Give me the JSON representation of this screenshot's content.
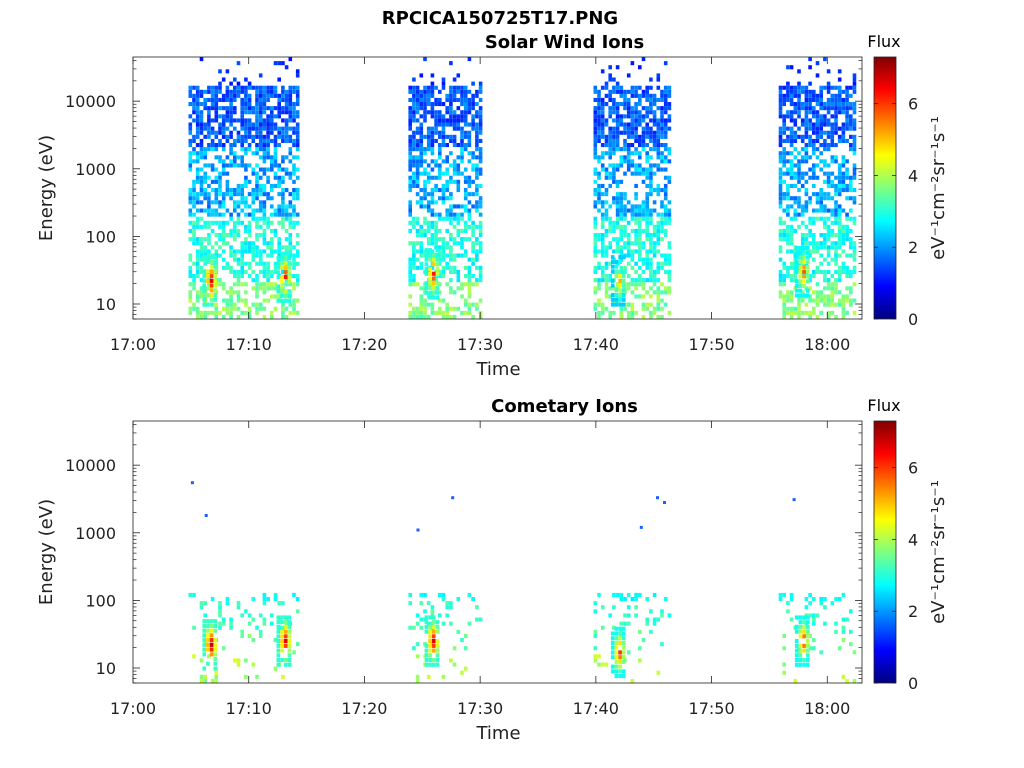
{
  "figure": {
    "title": "RPCICA150725T17.PNG"
  },
  "colorscale": [
    "#00007f",
    "#0000ff",
    "#007fff",
    "#00ffff",
    "#7fff7f",
    "#ffff00",
    "#ff7f00",
    "#ff0000",
    "#7f0000"
  ],
  "chart_data": [
    {
      "type": "heatmap",
      "title": "Solar Wind Ions",
      "xlabel": "Time",
      "ylabel": "Energy (eV)",
      "x_unit": "minutes after 17:00",
      "x_range": [
        0,
        63
      ],
      "x_ticks": [
        {
          "value": 0,
          "label": "17:00"
        },
        {
          "value": 10,
          "label": "17:10"
        },
        {
          "value": 20,
          "label": "17:20"
        },
        {
          "value": 30,
          "label": "17:30"
        },
        {
          "value": 40,
          "label": "17:40"
        },
        {
          "value": 50,
          "label": "17:50"
        },
        {
          "value": 60,
          "label": "18:00"
        }
      ],
      "y_scale": "log",
      "y_range": [
        6,
        45000
      ],
      "y_ticks": [
        {
          "value": 10,
          "label": "10"
        },
        {
          "value": 100,
          "label": "100"
        },
        {
          "value": 1000,
          "label": "1000"
        },
        {
          "value": 10000,
          "label": "10000"
        }
      ],
      "colorbar": {
        "title": "Flux",
        "label": "eV⁻¹cm⁻²sr⁻¹s⁻¹",
        "range": [
          0,
          7.3
        ],
        "ticks": [
          0,
          2,
          4,
          6
        ]
      },
      "data_intervals_minutes": [
        [
          4.8,
          14.3
        ],
        [
          23.8,
          30.2
        ],
        [
          39.8,
          46.3
        ],
        [
          55.8,
          62.3
        ]
      ],
      "hotspots": [
        {
          "t": 6.6,
          "energy": 22,
          "flux": 6.8
        },
        {
          "t": 13.0,
          "energy": 25,
          "flux": 6.5
        },
        {
          "t": 25.8,
          "energy": 28,
          "flux": 6.5
        },
        {
          "t": 41.9,
          "energy": 22,
          "flux": 5.3
        },
        {
          "t": 57.8,
          "energy": 30,
          "flux": 6.0
        }
      ],
      "grid": false
    },
    {
      "type": "heatmap",
      "title": "Cometary Ions",
      "xlabel": "Time",
      "ylabel": "Energy (eV)",
      "x_unit": "minutes after 17:00",
      "x_range": [
        0,
        63
      ],
      "x_ticks": [
        {
          "value": 0,
          "label": "17:00"
        },
        {
          "value": 10,
          "label": "17:10"
        },
        {
          "value": 20,
          "label": "17:20"
        },
        {
          "value": 30,
          "label": "17:30"
        },
        {
          "value": 40,
          "label": "17:40"
        },
        {
          "value": 50,
          "label": "17:50"
        },
        {
          "value": 60,
          "label": "18:00"
        }
      ],
      "y_scale": "log",
      "y_range": [
        6,
        45000
      ],
      "y_ticks": [
        {
          "value": 10,
          "label": "10"
        },
        {
          "value": 100,
          "label": "100"
        },
        {
          "value": 1000,
          "label": "1000"
        },
        {
          "value": 10000,
          "label": "10000"
        }
      ],
      "colorbar": {
        "title": "Flux",
        "label": "eV⁻¹cm⁻²sr⁻¹s⁻¹",
        "range": [
          0,
          7.3
        ],
        "ticks": [
          0,
          2,
          4,
          6
        ]
      },
      "data_intervals_minutes": [
        [
          4.8,
          14.3
        ],
        [
          23.8,
          30.2
        ],
        [
          39.8,
          46.3
        ],
        [
          55.8,
          62.3
        ]
      ],
      "hotspots": [
        {
          "t": 6.6,
          "energy": 22,
          "flux": 7.0
        },
        {
          "t": 13.0,
          "energy": 25,
          "flux": 6.8
        },
        {
          "t": 25.8,
          "energy": 25,
          "flux": 6.8
        },
        {
          "t": 41.9,
          "energy": 17,
          "flux": 6.3
        },
        {
          "t": 57.8,
          "energy": 25,
          "flux": 6.3
        }
      ],
      "sparse_high_energy_points": [
        {
          "t": 5.0,
          "energy": 5500
        },
        {
          "t": 6.2,
          "energy": 1800
        },
        {
          "t": 24.5,
          "energy": 1100
        },
        {
          "t": 27.5,
          "energy": 3300
        },
        {
          "t": 43.8,
          "energy": 1200
        },
        {
          "t": 45.2,
          "energy": 3300
        },
        {
          "t": 45.8,
          "energy": 2800
        },
        {
          "t": 57.0,
          "energy": 3100
        }
      ],
      "grid": false
    }
  ]
}
